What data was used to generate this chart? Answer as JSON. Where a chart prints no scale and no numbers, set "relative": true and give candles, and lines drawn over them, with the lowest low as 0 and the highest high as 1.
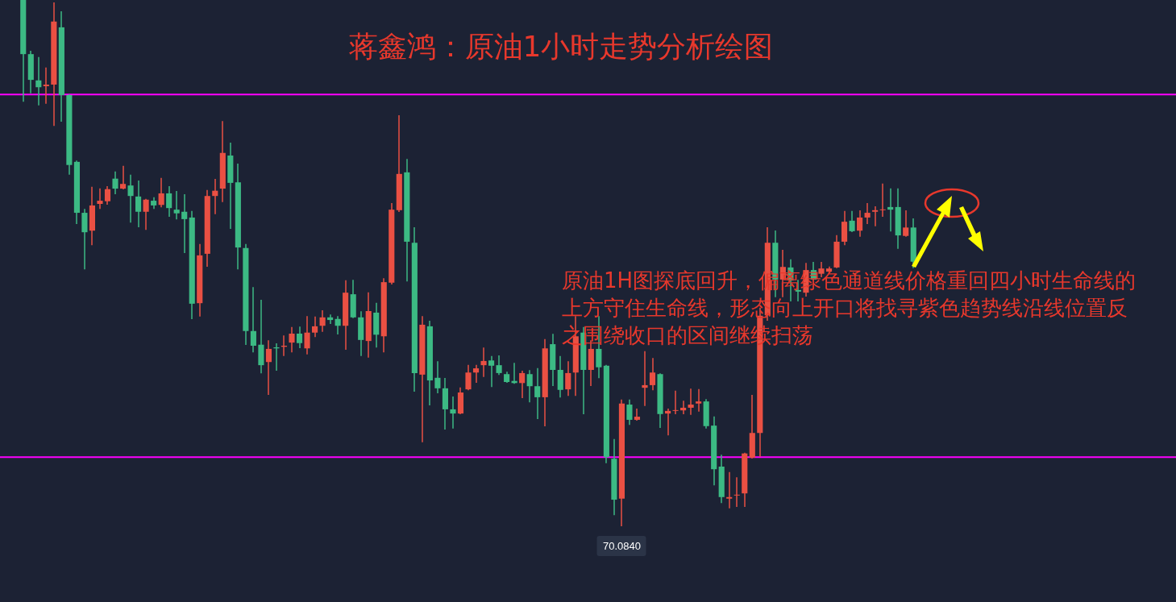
{
  "chart_data": {
    "type": "candlestick",
    "title": "蒋鑫鸿：原油1小时走势分析绘图",
    "relative": true,
    "legend": false,
    "tick_labels": false,
    "categories": [
      null,
      null,
      null,
      null,
      null,
      null,
      null,
      null,
      null,
      null,
      null,
      null,
      null,
      null,
      null,
      null,
      null,
      null,
      null,
      null,
      null,
      null,
      null,
      null,
      null,
      null,
      null,
      null,
      null,
      null,
      null,
      null,
      null,
      null,
      null,
      null,
      null,
      null,
      null,
      null,
      null,
      null,
      null,
      null,
      null,
      null,
      null,
      null,
      null,
      null,
      null,
      null,
      null,
      null,
      null,
      null,
      null,
      null,
      null,
      null,
      null,
      null,
      null,
      null,
      null,
      null,
      null,
      null,
      null,
      null,
      null,
      null,
      null,
      null,
      null,
      null,
      null,
      null,
      null,
      null,
      null,
      null,
      null,
      null,
      null,
      null,
      null,
      null,
      null,
      null,
      null,
      null,
      null,
      null,
      null,
      null,
      null,
      null,
      null,
      null,
      null,
      null,
      null,
      null,
      null,
      null,
      null,
      null,
      null,
      null,
      null,
      null,
      null,
      null,
      null,
      null,
      null
    ],
    "ohlc": [
      [
        1,
        1,
        0.808,
        0.897
      ],
      [
        0.897,
        0.902,
        0.824,
        0.848
      ],
      [
        0.847,
        0.89,
        0.801,
        0.834
      ],
      [
        0.836,
        0.87,
        0.804,
        0.839
      ],
      [
        0.839,
        0.994,
        0.762,
        0.959
      ],
      [
        0.948,
        0.977,
        0.77,
        0.819
      ],
      [
        0.819,
        0.819,
        0.669,
        0.686
      ],
      [
        0.692,
        0.693,
        0.575,
        0.595
      ],
      [
        0.595,
        0.601,
        0.489,
        0.558
      ],
      [
        0.561,
        0.643,
        0.535,
        0.609
      ],
      [
        0.612,
        0.64,
        0.604,
        0.618
      ],
      [
        0.617,
        0.644,
        0.612,
        0.64
      ],
      [
        0.66,
        0.672,
        0.632,
        0.641
      ],
      [
        0.641,
        0.683,
        0.641,
        0.65
      ],
      [
        0.647,
        0.666,
        0.578,
        0.627
      ],
      [
        0.626,
        0.655,
        0.569,
        0.597
      ],
      [
        0.597,
        0.62,
        0.564,
        0.62
      ],
      [
        0.618,
        0.623,
        0.604,
        0.609
      ],
      [
        0.61,
        0.66,
        0.607,
        0.632
      ],
      [
        0.632,
        0.644,
        0.589,
        0.604
      ],
      [
        0.601,
        0.635,
        0.584,
        0.594
      ],
      [
        0.597,
        0.629,
        0.52,
        0.583
      ],
      [
        0.586,
        0.597,
        0.394,
        0.422
      ],
      [
        0.423,
        0.534,
        0.399,
        0.514
      ],
      [
        0.517,
        0.637,
        0.494,
        0.627
      ],
      [
        0.627,
        0.658,
        0.594,
        0.637
      ],
      [
        0.641,
        0.768,
        0.617,
        0.709
      ],
      [
        0.704,
        0.727,
        0.566,
        0.652
      ],
      [
        0.653,
        0.687,
        0.489,
        0.529
      ],
      [
        0.528,
        0.534,
        0.345,
        0.37
      ],
      [
        0.37,
        0.452,
        0.331,
        0.342
      ],
      [
        0.344,
        0.428,
        0.291,
        0.305
      ],
      [
        0.311,
        0.351,
        0.25,
        0.336
      ],
      [
        0.339,
        0.345,
        0.296,
        0.337
      ],
      [
        0.34,
        0.36,
        0.324,
        0.342
      ],
      [
        0.348,
        0.376,
        0.331,
        0.365
      ],
      [
        0.365,
        0.377,
        0.339,
        0.347
      ],
      [
        0.337,
        0.397,
        0.327,
        0.367
      ],
      [
        0.367,
        0.396,
        0.36,
        0.379
      ],
      [
        0.38,
        0.408,
        0.37,
        0.396
      ],
      [
        0.396,
        0.4,
        0.385,
        0.391
      ],
      [
        0.393,
        0.397,
        0.365,
        0.38
      ],
      [
        0.38,
        0.465,
        0.336,
        0.443
      ],
      [
        0.44,
        0.466,
        0.396,
        0.396
      ],
      [
        0.396,
        0.406,
        0.324,
        0.353
      ],
      [
        0.351,
        0.442,
        0.321,
        0.408
      ],
      [
        0.405,
        0.422,
        0.34,
        0.363
      ],
      [
        0.36,
        0.469,
        0.331,
        0.463
      ],
      [
        0.462,
        0.612,
        0.46,
        0.601
      ],
      [
        0.6,
        0.779,
        0.598,
        0.669
      ],
      [
        0.672,
        0.696,
        0.466,
        0.54
      ],
      [
        0.538,
        0.566,
        0.256,
        0.29
      ],
      [
        0.287,
        0.397,
        0.16,
        0.382
      ],
      [
        0.379,
        0.388,
        0.23,
        0.276
      ],
      [
        0.281,
        0.311,
        0.253,
        0.261
      ],
      [
        0.261,
        0.279,
        0.184,
        0.221
      ],
      [
        0.221,
        0.244,
        0.186,
        0.213
      ],
      [
        0.213,
        0.261,
        0.213,
        0.253
      ],
      [
        0.259,
        0.304,
        0.259,
        0.291
      ],
      [
        0.291,
        0.304,
        0.273,
        0.299
      ],
      [
        0.305,
        0.337,
        0.284,
        0.313
      ],
      [
        0.314,
        0.321,
        0.265,
        0.304
      ],
      [
        0.305,
        0.322,
        0.288,
        0.29
      ],
      [
        0.288,
        0.291,
        0.273,
        0.273
      ],
      [
        0.275,
        0.308,
        0.271,
        0.271
      ],
      [
        0.271,
        0.293,
        0.244,
        0.29
      ],
      [
        0.288,
        0.294,
        0.236,
        0.265
      ],
      [
        0.265,
        0.298,
        0.204,
        0.244
      ],
      [
        0.244,
        0.353,
        0.19,
        0.337
      ],
      [
        0.345,
        0.363,
        0.267,
        0.296
      ],
      [
        0.296,
        0.321,
        0.245,
        0.258
      ],
      [
        0.259,
        0.311,
        0.248,
        0.29
      ],
      [
        0.291,
        0.397,
        0.248,
        0.36
      ],
      [
        0.367,
        0.376,
        0.213,
        0.296
      ],
      [
        0.296,
        0.351,
        0.267,
        0.336
      ],
      [
        0.336,
        0.397,
        0.282,
        0.301
      ],
      [
        0.304,
        0.304,
        0.12,
        0.13
      ],
      [
        0.127,
        0.163,
        0.021,
        0.049
      ],
      [
        0.051,
        0.238,
        0,
        0.232
      ],
      [
        0.23,
        0.238,
        0.193,
        0.201
      ],
      [
        0.201,
        0.221,
        0.201,
        0.207
      ],
      [
        0.262,
        0.33,
        0.229,
        0.267
      ],
      [
        0.267,
        0.317,
        0.259,
        0.291
      ],
      [
        0.288,
        0.288,
        0.187,
        0.212
      ],
      [
        0.213,
        0.221,
        0.173,
        0.218
      ],
      [
        0.218,
        0.255,
        0.213,
        0.219
      ],
      [
        0.219,
        0.236,
        0.213,
        0.224
      ],
      [
        0.224,
        0.259,
        0.212,
        0.23
      ],
      [
        0.232,
        0.258,
        0.218,
        0.236
      ],
      [
        0.236,
        0.239,
        0.186,
        0.189
      ],
      [
        0.19,
        0.206,
        0.078,
        0.107
      ],
      [
        0.112,
        0.133,
        0.044,
        0.054
      ],
      [
        0.051,
        0.1,
        0.034,
        0.054
      ],
      [
        0.057,
        0.09,
        0.037,
        0.058
      ],
      [
        0.061,
        0.137,
        0.037,
        0.137
      ],
      [
        0.129,
        0.247,
        0.129,
        0.176
      ],
      [
        0.176,
        0.413,
        0.132,
        0.399
      ],
      [
        0.4,
        0.566,
        0.391,
        0.538
      ],
      [
        0.538,
        0.56,
        0.436,
        0.468
      ],
      [
        0.468,
        0.523,
        0.436,
        0.492
      ],
      [
        0.491,
        0.505,
        0.428,
        0.466
      ],
      [
        0.448,
        0.466,
        0.428,
        0.445
      ],
      [
        0.443,
        0.498,
        0.437,
        0.486
      ],
      [
        0.486,
        0.5,
        0.468,
        0.468
      ],
      [
        0.479,
        0.5,
        0.474,
        0.489
      ],
      [
        0.483,
        0.491,
        0.483,
        0.489
      ],
      [
        0.491,
        0.551,
        0.491,
        0.54
      ],
      [
        0.54,
        0.597,
        0.535,
        0.578
      ],
      [
        0.58,
        0.597,
        0.56,
        0.56
      ],
      [
        0.561,
        0.598,
        0.551,
        0.586
      ],
      [
        0.586,
        0.612,
        0.575,
        0.595
      ],
      [
        0.597,
        0.606,
        0.571,
        0.6
      ],
      [
        0.6,
        0.649,
        0.589,
        0.601
      ],
      [
        0.606,
        0.64,
        0.561,
        0.601
      ],
      [
        0.606,
        0.64,
        0.528,
        0.552
      ],
      [
        0.551,
        0.598,
        0.551,
        0.567
      ],
      [
        0.567,
        0.583,
        0.491,
        0.502
      ]
    ],
    "colors": [
      "#3cba84",
      "#3cba84",
      "#3cba84",
      "#ea5043",
      "#ea5043",
      "#3cba84",
      "#3cba84",
      "#3cba84",
      "#3cba84",
      "#ea5043",
      "#ea5043",
      "#ea5043",
      "#3cba84",
      "#ea5043",
      "#3cba84",
      "#3cba84",
      "#ea5043",
      "#3cba84",
      "#ea5043",
      "#3cba84",
      "#3cba84",
      "#3cba84",
      "#3cba84",
      "#ea5043",
      "#ea5043",
      "#ea5043",
      "#ea5043",
      "#3cba84",
      "#3cba84",
      "#3cba84",
      "#3cba84",
      "#3cba84",
      "#ea5043",
      "#3cba84",
      "#ea5043",
      "#ea5043",
      "#3cba84",
      "#ea5043",
      "#ea5043",
      "#ea5043",
      "#3cba84",
      "#3cba84",
      "#ea5043",
      "#3cba84",
      "#3cba84",
      "#ea5043",
      "#3cba84",
      "#ea5043",
      "#ea5043",
      "#ea5043",
      "#3cba84",
      "#3cba84",
      "#ea5043",
      "#3cba84",
      "#3cba84",
      "#3cba84",
      "#3cba84",
      "#ea5043",
      "#ea5043",
      "#ea5043",
      "#ea5043",
      "#3cba84",
      "#3cba84",
      "#3cba84",
      "#3cba84",
      "#ea5043",
      "#3cba84",
      "#3cba84",
      "#ea5043",
      "#3cba84",
      "#3cba84",
      "#ea5043",
      "#ea5043",
      "#3cba84",
      "#ea5043",
      "#3cba84",
      "#3cba84",
      "#3cba84",
      "#ea5043",
      "#3cba84",
      "#ea5043",
      "#ea5043",
      "#ea5043",
      "#3cba84",
      "#ea5043",
      "#ea5043",
      "#ea5043",
      "#ea5043",
      "#ea5043",
      "#3cba84",
      "#3cba84",
      "#3cba84",
      "#ea5043",
      "#ea5043",
      "#ea5043",
      "#ea5043",
      "#ea5043",
      "#ea5043",
      "#3cba84",
      "#ea5043",
      "#3cba84",
      "#3cba84",
      "#ea5043",
      "#3cba84",
      "#ea5043",
      "#ea5043",
      "#ea5043",
      "#ea5043",
      "#3cba84",
      "#ea5043",
      "#ea5043",
      "#ea5043",
      "#ea5043",
      "#3cba84",
      "#3cba84",
      "#ea5043",
      "#3cba84"
    ],
    "ref_lines": [
      {
        "axis": "y",
        "value": 0.82,
        "color": "#ff00ff"
      },
      {
        "axis": "y",
        "value": 0.13,
        "color": "#ff00ff"
      }
    ],
    "annotations": [
      {
        "text": "70.0840",
        "y": 0
      },
      "原油1H图探底回升，偏离绿色通道线价格重回四小时生命线的上方守住生命线，形态向上开口将找寻紫色趋势线沿线位置反之围绕收口的区间继续扫荡"
    ]
  }
}
